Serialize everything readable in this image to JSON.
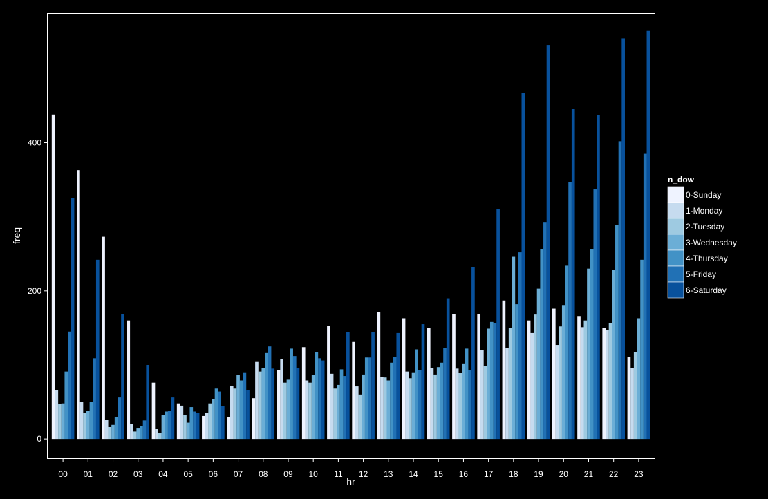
{
  "chart_data": {
    "type": "bar",
    "title": "",
    "xlabel": "hr",
    "ylabel": "freq",
    "ylim": [
      -26,
      575
    ],
    "yticks": [
      0,
      200,
      400
    ],
    "grid": false,
    "legend_position": "right",
    "legend_title": "n_dow",
    "background_color": "#000000",
    "panel_border_color": "#ffffff",
    "text_color": "#ffffff",
    "categories": [
      "00",
      "01",
      "02",
      "03",
      "04",
      "05",
      "06",
      "07",
      "08",
      "09",
      "10",
      "11",
      "12",
      "13",
      "14",
      "15",
      "16",
      "17",
      "18",
      "19",
      "20",
      "21",
      "22",
      "23"
    ],
    "series": [
      {
        "name": "0-Sunday",
        "color": "#eff3ff",
        "values": [
          438,
          363,
          273,
          160,
          76,
          48,
          31,
          30,
          55,
          93,
          124,
          153,
          131,
          171,
          163,
          150,
          169,
          169,
          187,
          160,
          176,
          166,
          150,
          111
        ]
      },
      {
        "name": "1-Monday",
        "color": "#c6dbef",
        "values": [
          66,
          50,
          26,
          20,
          14,
          45,
          35,
          72,
          104,
          108,
          79,
          88,
          71,
          84,
          91,
          96,
          95,
          120,
          123,
          143,
          127,
          151,
          147,
          96
        ]
      },
      {
        "name": "2-Tuesday",
        "color": "#9ecae1",
        "values": [
          47,
          35,
          16,
          10,
          8,
          32,
          48,
          68,
          91,
          76,
          76,
          68,
          60,
          83,
          82,
          87,
          89,
          99,
          150,
          168,
          152,
          160,
          156,
          117
        ]
      },
      {
        "name": "3-Wednesday",
        "color": "#6baed6",
        "values": [
          48,
          38,
          19,
          15,
          32,
          22,
          54,
          86,
          96,
          80,
          86,
          73,
          87,
          79,
          90,
          97,
          102,
          149,
          246,
          203,
          180,
          230,
          228,
          163
        ]
      },
      {
        "name": "4-Thursday",
        "color": "#4292c6",
        "values": [
          91,
          50,
          30,
          17,
          37,
          43,
          68,
          79,
          116,
          122,
          117,
          94,
          110,
          103,
          121,
          103,
          122,
          158,
          182,
          256,
          234,
          256,
          289,
          242
        ]
      },
      {
        "name": "5-Friday",
        "color": "#2171b5",
        "values": [
          145,
          109,
          56,
          25,
          38,
          37,
          64,
          90,
          125,
          112,
          109,
          85,
          110,
          111,
          93,
          123,
          93,
          156,
          252,
          293,
          347,
          337,
          402,
          385
        ]
      },
      {
        "name": "6-Saturday",
        "color": "#08519c",
        "values": [
          325,
          242,
          169,
          100,
          56,
          35,
          44,
          66,
          95,
          96,
          106,
          144,
          144,
          143,
          155,
          190,
          232,
          310,
          467,
          532,
          446,
          437,
          541,
          551
        ]
      }
    ]
  }
}
